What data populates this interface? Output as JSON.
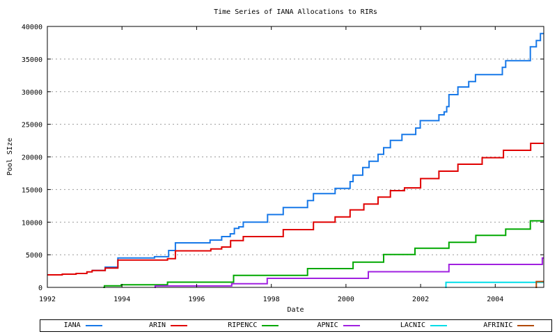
{
  "chart_data": {
    "type": "line",
    "subtype": "step-post",
    "title": "Time Series of IANA Allocations to RIRs",
    "xlabel": "Date",
    "ylabel": "Pool SIze",
    "xlim": [
      1992,
      2005.3
    ],
    "ylim": [
      0,
      40000
    ],
    "x_ticks": [
      1992,
      1994,
      1996,
      1998,
      2000,
      2002,
      2004
    ],
    "y_ticks": [
      0,
      5000,
      10000,
      15000,
      20000,
      25000,
      30000,
      35000,
      40000
    ],
    "grid": "horizontal-dashed",
    "grid_color": "#999999",
    "axis_color": "#000000",
    "legend_position": "bottom-box",
    "series": [
      {
        "name": "IANA",
        "color": "#1778E8",
        "points": [
          [
            1993.2,
            2600
          ],
          [
            1993.55,
            3100
          ],
          [
            1993.89,
            4500
          ],
          [
            1994.87,
            4700
          ],
          [
            1995.25,
            5650
          ],
          [
            1995.43,
            6830
          ],
          [
            1996.36,
            7250
          ],
          [
            1996.67,
            7790
          ],
          [
            1996.9,
            8210
          ],
          [
            1997.01,
            9030
          ],
          [
            1997.13,
            9280
          ],
          [
            1997.25,
            10000
          ],
          [
            1997.9,
            11160
          ],
          [
            1998.32,
            12230
          ],
          [
            1998.97,
            13300
          ],
          [
            1999.13,
            14370
          ],
          [
            1999.71,
            15180
          ],
          [
            2000.11,
            16210
          ],
          [
            2000.19,
            17210
          ],
          [
            2000.45,
            18380
          ],
          [
            2000.62,
            19340
          ],
          [
            2000.86,
            20410
          ],
          [
            2001.01,
            21410
          ],
          [
            2001.19,
            22540
          ],
          [
            2001.5,
            23430
          ],
          [
            2001.87,
            24430
          ],
          [
            2001.99,
            25560
          ],
          [
            2002.49,
            26450
          ],
          [
            2002.63,
            26910
          ],
          [
            2002.7,
            27700
          ],
          [
            2002.76,
            29550
          ],
          [
            2003.0,
            30720
          ],
          [
            2003.29,
            31540
          ],
          [
            2003.47,
            32610
          ],
          [
            2004.19,
            33740
          ],
          [
            2004.28,
            34740
          ],
          [
            2004.94,
            36880
          ],
          [
            2005.1,
            37840
          ],
          [
            2005.21,
            38900
          ],
          [
            2005.3,
            38900
          ]
        ]
      },
      {
        "name": "ARIN",
        "color": "#E00000",
        "points": [
          [
            1992.0,
            1920
          ],
          [
            1992.4,
            2030
          ],
          [
            1992.77,
            2130
          ],
          [
            1993.06,
            2380
          ],
          [
            1993.2,
            2590
          ],
          [
            1993.55,
            2950
          ],
          [
            1993.89,
            4190
          ],
          [
            1995.22,
            4400
          ],
          [
            1995.43,
            5600
          ],
          [
            1996.38,
            5900
          ],
          [
            1996.67,
            6190
          ],
          [
            1996.91,
            7180
          ],
          [
            1997.25,
            7790
          ],
          [
            1998.32,
            8850
          ],
          [
            1999.13,
            9990
          ],
          [
            1999.71,
            10810
          ],
          [
            2000.11,
            11880
          ],
          [
            2000.48,
            12770
          ],
          [
            2000.86,
            13830
          ],
          [
            2001.19,
            14830
          ],
          [
            2001.57,
            15250
          ],
          [
            2002.0,
            16680
          ],
          [
            2002.49,
            17810
          ],
          [
            2003.0,
            18880
          ],
          [
            2003.65,
            19880
          ],
          [
            2004.22,
            21010
          ],
          [
            2004.95,
            22080
          ],
          [
            2005.3,
            22080
          ]
        ]
      },
      {
        "name": "RIPENCC",
        "color": "#00A800",
        "points": [
          [
            1993.5,
            0
          ],
          [
            1993.53,
            250
          ],
          [
            1993.98,
            400
          ],
          [
            1995.22,
            800
          ],
          [
            1996.99,
            1850
          ],
          [
            1998.97,
            2880
          ],
          [
            2000.19,
            3870
          ],
          [
            2001.01,
            5045
          ],
          [
            2001.85,
            6005
          ],
          [
            2002.76,
            6900
          ],
          [
            2003.48,
            7970
          ],
          [
            2004.28,
            8930
          ],
          [
            2004.94,
            10200
          ],
          [
            2005.3,
            10200
          ]
        ]
      },
      {
        "name": "APNIC",
        "color": "#A020E0",
        "points": [
          [
            1994.87,
            0
          ],
          [
            1994.89,
            220
          ],
          [
            1996.94,
            550
          ],
          [
            1997.89,
            1390
          ],
          [
            2000.6,
            2400
          ],
          [
            2002.76,
            3520
          ],
          [
            2005.26,
            4510
          ],
          [
            2005.3,
            4510
          ]
        ]
      },
      {
        "name": "LACNIC",
        "color": "#00DDE8",
        "points": [
          [
            2002.66,
            0
          ],
          [
            2002.68,
            780
          ],
          [
            2005.3,
            780
          ]
        ]
      },
      {
        "name": "AFRINIC",
        "color": "#B04A0A",
        "points": [
          [
            2005.08,
            0
          ],
          [
            2005.1,
            900
          ],
          [
            2005.3,
            900
          ]
        ]
      }
    ]
  }
}
